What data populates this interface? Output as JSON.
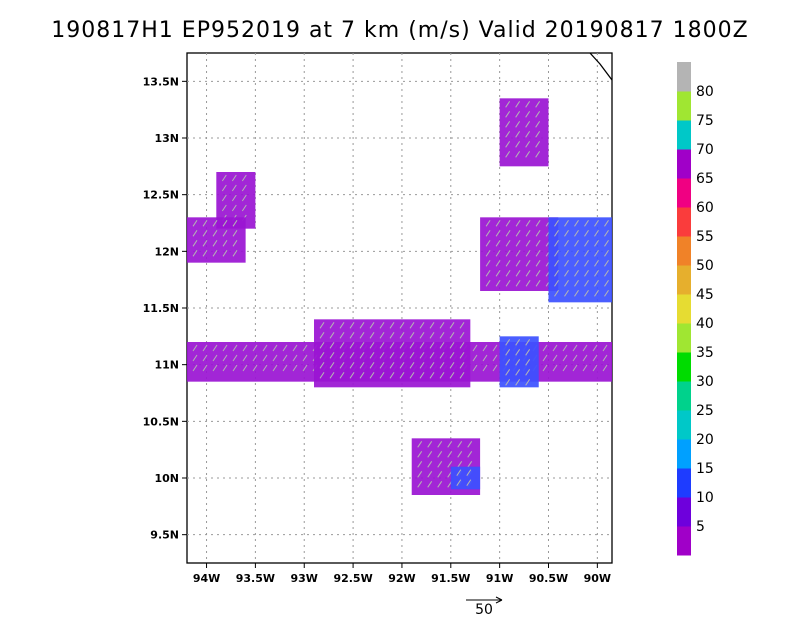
{
  "title": "190817H1 EP952019 at 7 km (m/s) Valid 20190817 1800Z",
  "chart_data": {
    "type": "heatmap",
    "units": "m/s",
    "x_ticks": [
      "94W",
      "93.5W",
      "93W",
      "92.5W",
      "92W",
      "91.5W",
      "91W",
      "90.5W",
      "90W"
    ],
    "y_ticks": [
      "13.5N",
      "13N",
      "12.5N",
      "12N",
      "11.5N",
      "11N",
      "10.5N",
      "10N",
      "9.5N"
    ],
    "xlim": [
      -94.2,
      -89.85
    ],
    "ylim": [
      9.25,
      13.75
    ],
    "grid": true,
    "colorbar": {
      "levels": [
        "5",
        "10",
        "15",
        "20",
        "25",
        "30",
        "35",
        "40",
        "45",
        "50",
        "55",
        "60",
        "65",
        "70",
        "75",
        "80"
      ],
      "colors": [
        "#a000c8",
        "#6e00dc",
        "#1e3cff",
        "#00a0ff",
        "#00c8c8",
        "#00d28c",
        "#00dc00",
        "#a0e632",
        "#e6dc32",
        "#e6af2d",
        "#f08228",
        "#fa3c3c",
        "#f00082",
        "#a000c8",
        "#00c8c8",
        "#a0e632",
        "#b4b4b4"
      ]
    },
    "reference_vector": "50",
    "regions": [
      {
        "lon": [
          -94.2,
          -89.85
        ],
        "lat": [
          10.85,
          11.2
        ],
        "level": "5"
      },
      {
        "lon": [
          -92.9,
          -91.3
        ],
        "lat": [
          10.8,
          11.4
        ],
        "level": "5"
      },
      {
        "lon": [
          -91.2,
          -90.4
        ],
        "lat": [
          11.65,
          12.3
        ],
        "level": "5"
      },
      {
        "lon": [
          -90.5,
          -89.85
        ],
        "lat": [
          11.55,
          12.3
        ],
        "level": "10"
      },
      {
        "lon": [
          -91.0,
          -90.5
        ],
        "lat": [
          12.75,
          13.35
        ],
        "level": "5"
      },
      {
        "lon": [
          -93.9,
          -93.5
        ],
        "lat": [
          12.2,
          12.7
        ],
        "level": "5"
      },
      {
        "lon": [
          -94.2,
          -93.6
        ],
        "lat": [
          11.9,
          12.3
        ],
        "level": "5"
      },
      {
        "lon": [
          -91.9,
          -91.2
        ],
        "lat": [
          9.85,
          10.35
        ],
        "level": "5"
      },
      {
        "lon": [
          -91.5,
          -91.2
        ],
        "lat": [
          9.9,
          10.1
        ],
        "level": "10"
      },
      {
        "lon": [
          -91.0,
          -90.6
        ],
        "lat": [
          10.8,
          11.25
        ],
        "level": "10"
      }
    ]
  }
}
